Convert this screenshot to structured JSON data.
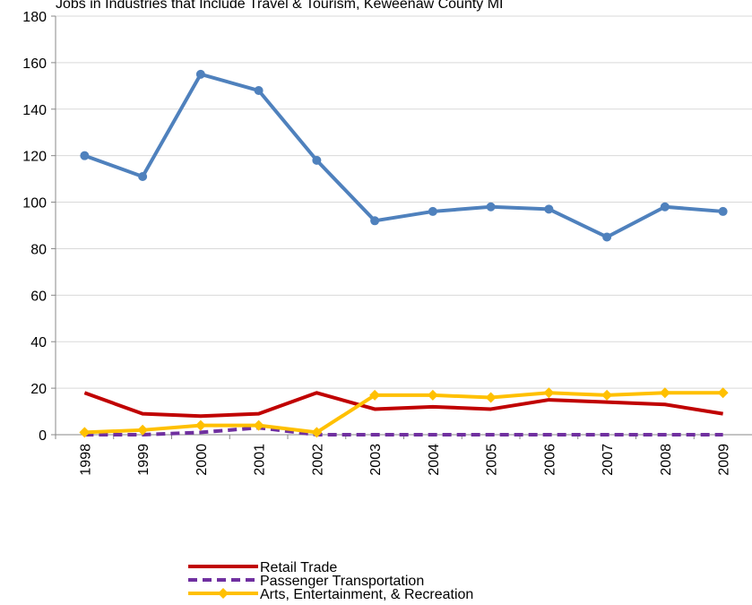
{
  "chart_data": {
    "type": "line",
    "title": "Jobs in Industries that Include Travel & Tourism, Keweenaw County MI",
    "categories": [
      "1998",
      "1999",
      "2000",
      "2001",
      "2002",
      "2003",
      "2004",
      "2005",
      "2006",
      "2007",
      "2008",
      "2009"
    ],
    "series": [
      {
        "color": "#4f81bd",
        "marker": "circle",
        "dash": false,
        "values": [
          120,
          111,
          155,
          148,
          118,
          92,
          96,
          98,
          97,
          85,
          98,
          96
        ]
      },
      {
        "name": "Retail Trade",
        "color": "#c00000",
        "marker": "none",
        "dash": false,
        "values": [
          18,
          9,
          8,
          9,
          18,
          11,
          12,
          11,
          15,
          14,
          13,
          9
        ]
      },
      {
        "name": "Passenger Transportation",
        "color": "#7030a0",
        "marker": "none",
        "dash": true,
        "values": [
          0,
          0,
          1,
          3,
          0,
          0,
          0,
          0,
          0,
          0,
          0,
          0
        ]
      },
      {
        "name": "Arts, Entertainment, & Recreation",
        "color": "#ffc000",
        "marker": "diamond",
        "dash": false,
        "values": [
          1,
          2,
          4,
          4,
          1,
          17,
          17,
          16,
          18,
          17,
          18,
          18
        ]
      }
    ],
    "ylim": [
      0,
      180
    ],
    "yticks": [
      0,
      20,
      40,
      60,
      80,
      100,
      120,
      140,
      160,
      180
    ],
    "grid": true
  }
}
